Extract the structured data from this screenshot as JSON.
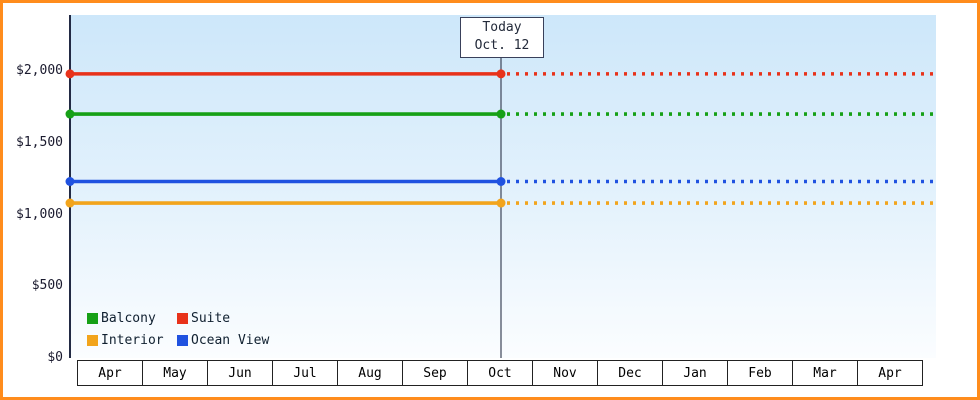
{
  "chart_data": {
    "type": "line",
    "title": "",
    "x_categories": [
      "Apr",
      "May",
      "Jun",
      "Jul",
      "Aug",
      "Sep",
      "Oct",
      "Nov",
      "Dec",
      "Jan",
      "Feb",
      "Mar",
      "Apr"
    ],
    "y_ticks": [
      {
        "label": "$2,000",
        "value": 2000
      },
      {
        "label": "$1,500",
        "value": 1500
      },
      {
        "label": "$1,000",
        "value": 1000
      },
      {
        "label": "$500",
        "value": 500
      },
      {
        "label": "$0",
        "value": 0
      }
    ],
    "ylim": [
      0,
      2390
    ],
    "grid": false,
    "today": {
      "line1": "Today",
      "line2": "Oct. 12",
      "x_category": "Oct"
    },
    "style_before_today": "solid",
    "style_after_today": "dotted",
    "series": [
      {
        "name": "Suite",
        "value": 1980,
        "color": "#e8321a"
      },
      {
        "name": "Balcony",
        "value": 1700,
        "color": "#16a016"
      },
      {
        "name": "Ocean View",
        "value": 1230,
        "color": "#2052e0"
      },
      {
        "name": "Interior",
        "value": 1080,
        "color": "#f2a41c"
      }
    ],
    "legend": {
      "position": "bottom-left",
      "items": [
        {
          "label": "Balcony",
          "color": "#16a016"
        },
        {
          "label": "Suite",
          "color": "#e8321a"
        },
        {
          "label": "Interior",
          "color": "#f2a41c"
        },
        {
          "label": "Ocean View",
          "color": "#2052e0"
        }
      ]
    }
  },
  "colors": {
    "border": "#ff8c1c",
    "axis": "#222a44",
    "today_line": "#3c4458",
    "plot_bg_top": "#cde7fa",
    "plot_bg_bottom": "#fbfdff"
  }
}
